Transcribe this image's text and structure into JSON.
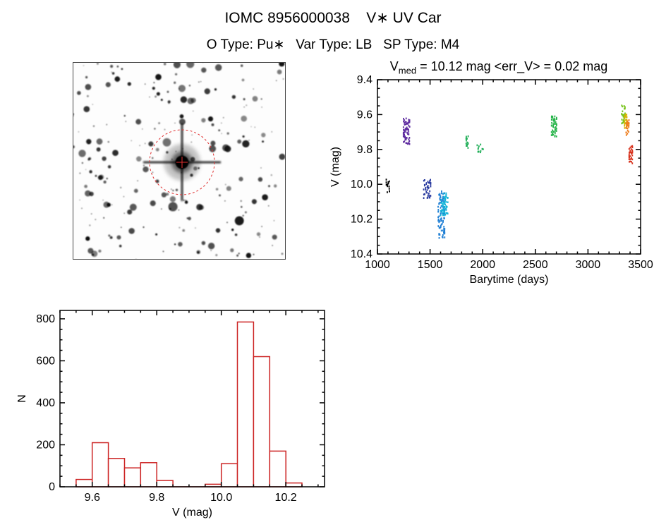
{
  "header": {
    "title": "IOMC 8956000038    V∗ UV Car",
    "subtitle": "O Type: Pu∗   Var Type: LB   SP Type: M4"
  },
  "finder": {
    "aperture_color": "#e03030"
  },
  "chart_data": [
    {
      "type": "scatter",
      "name": "lightcurve",
      "title_prefix": "V",
      "title_sub": "med",
      "title_rest": " = 10.12 mag <err_V> = 0.02 mag",
      "xlabel": "Barytime (days)",
      "ylabel": "V (mag)",
      "xlim": [
        1000,
        3500
      ],
      "ylim": [
        9.4,
        10.4
      ],
      "y_inverted": true,
      "xticks": [
        1000,
        1500,
        2000,
        2500,
        3000,
        3500
      ],
      "xtick_labels": [
        "1000",
        "1500",
        "2000",
        "2500",
        "3000",
        "3500"
      ],
      "yticks": [
        9.4,
        9.6,
        9.8,
        10.0,
        10.2,
        10.4
      ],
      "ytick_labels": [
        "9.4",
        "9.6",
        "9.8",
        "10.0",
        "10.2",
        "10.4"
      ],
      "x_minor_step": 100,
      "y_minor_step": 0.05,
      "clusters": [
        {
          "name": "epoch-01",
          "color": "#000000",
          "x": [
            1085,
            1112
          ],
          "y": [
            9.97,
            10.07
          ],
          "n": 14
        },
        {
          "name": "epoch-02",
          "color": "#5f2da0",
          "x": [
            1248,
            1305
          ],
          "y": [
            9.62,
            9.77
          ],
          "n": 70
        },
        {
          "name": "epoch-03",
          "color": "#27389e",
          "x": [
            1440,
            1505
          ],
          "y": [
            9.97,
            10.08
          ],
          "n": 40
        },
        {
          "name": "epoch-04",
          "color": "#1f7fd4",
          "x": [
            1578,
            1638
          ],
          "y": [
            10.04,
            10.31
          ],
          "n": 95
        },
        {
          "name": "epoch-05",
          "color": "#17b4d8",
          "x": [
            1600,
            1668
          ],
          "y": [
            10.05,
            10.18
          ],
          "n": 60
        },
        {
          "name": "epoch-06",
          "color": "#1fae57",
          "x": [
            1843,
            1862
          ],
          "y": [
            9.72,
            9.8
          ],
          "n": 14
        },
        {
          "name": "epoch-07",
          "color": "#1fae57",
          "x": [
            1948,
            2005
          ],
          "y": [
            9.77,
            9.82
          ],
          "n": 12
        },
        {
          "name": "epoch-08",
          "color": "#27b44a",
          "x": [
            2655,
            2702
          ],
          "y": [
            9.61,
            9.73
          ],
          "n": 55
        },
        {
          "name": "epoch-09",
          "color": "#79c41e",
          "x": [
            3320,
            3352
          ],
          "y": [
            9.54,
            9.66
          ],
          "n": 32
        },
        {
          "name": "epoch-10",
          "color": "#d8b200",
          "x": [
            3348,
            3368
          ],
          "y": [
            9.6,
            9.69
          ],
          "n": 22
        },
        {
          "name": "epoch-11",
          "color": "#ee7d1c",
          "x": [
            3364,
            3388
          ],
          "y": [
            9.63,
            9.72
          ],
          "n": 26
        },
        {
          "name": "epoch-12",
          "color": "#d8341f",
          "x": [
            3392,
            3422
          ],
          "y": [
            9.78,
            9.88
          ],
          "n": 34
        }
      ]
    },
    {
      "type": "bar",
      "name": "magnitude-histogram",
      "xlabel": "V (mag)",
      "ylabel": "N",
      "xlim": [
        9.5,
        10.32
      ],
      "ylim": [
        0,
        840
      ],
      "xticks": [
        9.6,
        9.8,
        10.0,
        10.2
      ],
      "xtick_labels": [
        "9.6",
        "9.8",
        "10.0",
        "10.2"
      ],
      "yticks": [
        0,
        200,
        400,
        600,
        800
      ],
      "ytick_labels": [
        "0",
        "200",
        "400",
        "600",
        "800"
      ],
      "x_minor_step": 0.05,
      "y_minor_step": 50,
      "bar_color": "#cc2222",
      "bin_start": 9.55,
      "bin_width": 0.05,
      "values": [
        35,
        210,
        135,
        90,
        115,
        30,
        0,
        0,
        12,
        110,
        785,
        620,
        170,
        18
      ]
    }
  ]
}
